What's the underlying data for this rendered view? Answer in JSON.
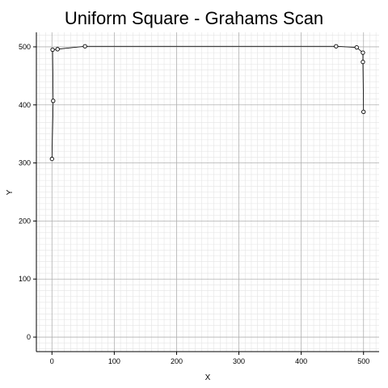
{
  "chart_data": {
    "type": "scatter",
    "title": "Uniform Square - Grahams Scan",
    "xlabel": "X",
    "ylabel": "Y",
    "xlim": [
      -25,
      525
    ],
    "ylim": [
      -25,
      525
    ],
    "xticks": [
      0,
      100,
      200,
      300,
      400,
      500
    ],
    "yticks": [
      0,
      100,
      200,
      300,
      400,
      500
    ],
    "grid": true,
    "minor_grid": true,
    "series": [
      {
        "points": [
          [
            0,
            307
          ],
          [
            2,
            407
          ],
          [
            1,
            495
          ],
          [
            9,
            496
          ],
          [
            53,
            501
          ],
          [
            456,
            501
          ],
          [
            489,
            499
          ],
          [
            499,
            490
          ],
          [
            499,
            474
          ],
          [
            500,
            388
          ]
        ],
        "hull_order": [
          0,
          1,
          2,
          3,
          4,
          5,
          6,
          7,
          8,
          9
        ],
        "marker": "open-circle",
        "color": "#000000"
      }
    ]
  }
}
